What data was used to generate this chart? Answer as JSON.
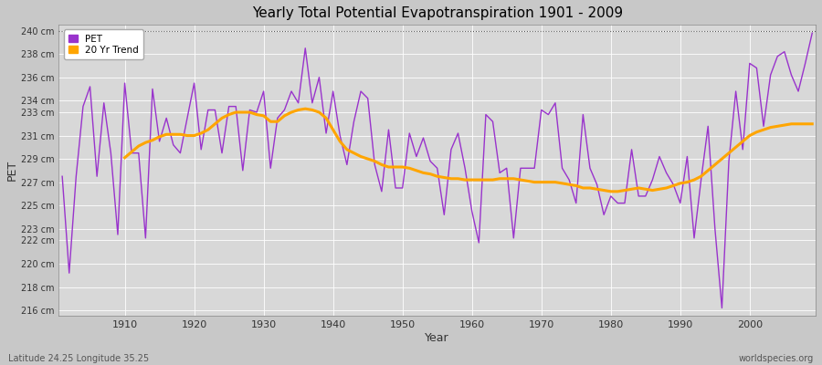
{
  "title": "Yearly Total Potential Evapotranspiration 1901 - 2009",
  "xlabel": "Year",
  "ylabel": "PET",
  "footnote_left": "Latitude 24.25 Longitude 35.25",
  "footnote_right": "worldspecies.org",
  "pet_color": "#9933CC",
  "trend_color": "#FFA500",
  "bg_color": "#C8C8C8",
  "plot_bg_color": "#D8D8D8",
  "ylim": [
    215.5,
    240.5
  ],
  "yticks": [
    216,
    218,
    220,
    222,
    223,
    225,
    227,
    229,
    231,
    233,
    234,
    236,
    238,
    240
  ],
  "ytick_labels": [
    "216 cm",
    "218 cm",
    "220 cm",
    "222 cm",
    "223 cm",
    "225 cm",
    "227 cm",
    "229 cm",
    "231 cm",
    "233 cm",
    "234 cm",
    "236 cm",
    "238 cm",
    "240 cm"
  ],
  "xlim": [
    1900.5,
    2009.5
  ],
  "xticks": [
    1910,
    1920,
    1930,
    1940,
    1950,
    1960,
    1970,
    1980,
    1990,
    2000
  ],
  "years": [
    1901,
    1902,
    1903,
    1904,
    1905,
    1906,
    1907,
    1908,
    1909,
    1910,
    1911,
    1912,
    1913,
    1914,
    1915,
    1916,
    1917,
    1918,
    1919,
    1920,
    1921,
    1922,
    1923,
    1924,
    1925,
    1926,
    1927,
    1928,
    1929,
    1930,
    1931,
    1932,
    1933,
    1934,
    1935,
    1936,
    1937,
    1938,
    1939,
    1940,
    1941,
    1942,
    1943,
    1944,
    1945,
    1946,
    1947,
    1948,
    1949,
    1950,
    1951,
    1952,
    1953,
    1954,
    1955,
    1956,
    1957,
    1958,
    1959,
    1960,
    1961,
    1962,
    1963,
    1964,
    1965,
    1966,
    1967,
    1968,
    1969,
    1970,
    1971,
    1972,
    1973,
    1974,
    1975,
    1976,
    1977,
    1978,
    1979,
    1980,
    1981,
    1982,
    1983,
    1984,
    1985,
    1986,
    1987,
    1988,
    1989,
    1990,
    1991,
    1992,
    1993,
    1994,
    1995,
    1996,
    1997,
    1998,
    1999,
    2000,
    2001,
    2002,
    2003,
    2004,
    2005,
    2006,
    2007,
    2008,
    2009
  ],
  "pet_values": [
    227.5,
    219.2,
    227.5,
    233.5,
    235.2,
    227.5,
    233.8,
    229.5,
    222.5,
    235.5,
    229.5,
    229.5,
    222.2,
    235.0,
    230.5,
    232.5,
    230.2,
    229.5,
    232.5,
    235.5,
    229.8,
    233.2,
    233.2,
    229.5,
    233.5,
    233.5,
    228.0,
    233.2,
    233.0,
    234.8,
    228.2,
    232.5,
    233.2,
    234.8,
    233.8,
    238.5,
    233.8,
    236.0,
    231.2,
    234.8,
    231.0,
    228.5,
    232.2,
    234.8,
    234.2,
    228.5,
    226.2,
    231.5,
    226.5,
    226.5,
    231.2,
    229.2,
    230.8,
    228.8,
    228.2,
    224.2,
    229.8,
    231.2,
    228.2,
    224.5,
    221.8,
    232.8,
    232.2,
    227.8,
    228.2,
    222.2,
    228.2,
    228.2,
    228.2,
    233.2,
    232.8,
    233.8,
    228.2,
    227.2,
    225.2,
    232.8,
    228.2,
    226.8,
    224.2,
    225.8,
    225.2,
    225.2,
    229.8,
    225.8,
    225.8,
    227.2,
    229.2,
    227.8,
    226.8,
    225.2,
    229.2,
    222.2,
    227.2,
    231.8,
    223.0,
    216.2,
    228.8,
    234.8,
    229.8,
    237.2,
    236.8,
    231.8,
    236.2,
    237.8,
    238.2,
    236.2,
    234.8,
    237.2,
    239.8
  ],
  "trend_years": [
    1910,
    1911,
    1912,
    1913,
    1914,
    1915,
    1916,
    1917,
    1918,
    1919,
    1920,
    1921,
    1922,
    1923,
    1924,
    1925,
    1926,
    1927,
    1928,
    1929,
    1930,
    1931,
    1932,
    1933,
    1934,
    1935,
    1936,
    1937,
    1938,
    1939,
    1940,
    1941,
    1942,
    1943,
    1944,
    1945,
    1946,
    1947,
    1948,
    1949,
    1950,
    1951,
    1952,
    1953,
    1954,
    1955,
    1956,
    1957,
    1958,
    1959,
    1960,
    1961,
    1962,
    1963,
    1964,
    1965,
    1966,
    1967,
    1968,
    1969,
    1970,
    1971,
    1972,
    1973,
    1974,
    1975,
    1976,
    1977,
    1978,
    1979,
    1980,
    1981,
    1982,
    1983,
    1984,
    1985,
    1986,
    1987,
    1988,
    1989,
    1990,
    1991,
    1992,
    1993,
    1994,
    1995,
    1996,
    1997,
    1998,
    1999,
    2000,
    2001,
    2002,
    2003,
    2004,
    2005,
    2006,
    2007,
    2008,
    2009
  ],
  "trend_values": [
    229.1,
    229.6,
    230.1,
    230.4,
    230.6,
    230.9,
    231.1,
    231.1,
    231.1,
    231.0,
    231.0,
    231.2,
    231.5,
    232.0,
    232.5,
    232.8,
    233.0,
    233.0,
    233.0,
    232.8,
    232.7,
    232.2,
    232.2,
    232.7,
    233.0,
    233.2,
    233.3,
    233.2,
    233.0,
    232.5,
    231.5,
    230.5,
    229.8,
    229.5,
    229.2,
    229.0,
    228.8,
    228.5,
    228.3,
    228.3,
    228.3,
    228.2,
    228.0,
    227.8,
    227.7,
    227.5,
    227.4,
    227.3,
    227.3,
    227.2,
    227.2,
    227.2,
    227.2,
    227.2,
    227.3,
    227.3,
    227.3,
    227.2,
    227.1,
    227.0,
    227.0,
    227.0,
    227.0,
    226.9,
    226.8,
    226.7,
    226.5,
    226.5,
    226.4,
    226.3,
    226.2,
    226.2,
    226.3,
    226.4,
    226.5,
    226.4,
    226.3,
    226.4,
    226.5,
    226.7,
    226.9,
    227.0,
    227.2,
    227.5,
    228.0,
    228.5,
    229.0,
    229.5,
    230.0,
    230.5,
    231.0,
    231.3,
    231.5,
    231.7,
    231.8,
    231.9,
    232.0,
    232.0,
    232.0,
    232.0
  ]
}
